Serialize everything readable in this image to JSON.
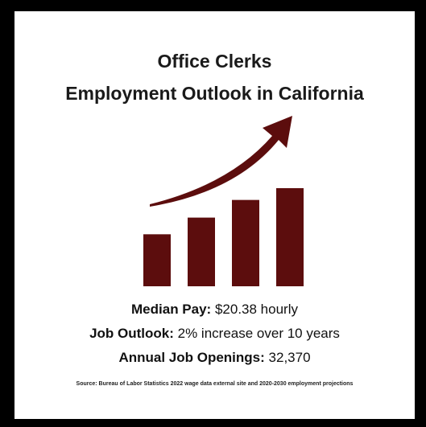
{
  "title_line_1": "Office Clerks",
  "title_line_2": "Employment Outlook in California",
  "stats": [
    {
      "label": "Median Pay:",
      "value": "$20.38 hourly"
    },
    {
      "label": "Job Outlook:",
      "value": "2% increase over 10 years"
    },
    {
      "label": "Annual Job Openings:",
      "value": "32,370"
    }
  ],
  "source": "Source: Bureau of Labor Statistics 2022 wage data external site and 2020-2030 employment projections",
  "graphic": {
    "icon": "growth-bar-chart-with-upward-arrow-icon",
    "bar_levels": [
      0.53,
      0.7,
      0.88,
      1.0
    ],
    "color": "#5c0d0d"
  },
  "colors": {
    "border": "#000000",
    "background": "#ffffff",
    "accent": "#5c0d0d",
    "text": "#1a1a1a"
  }
}
